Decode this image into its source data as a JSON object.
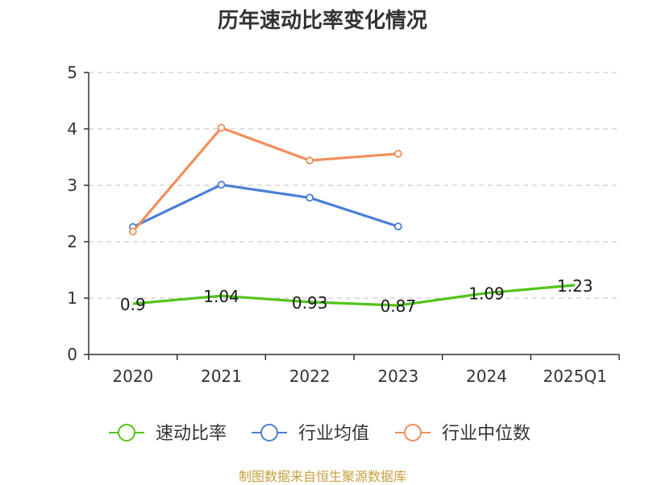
{
  "title": "历年速动比率变化情况",
  "footer": "制图数据来自恒生聚源数据库",
  "chart_data": {
    "type": "line",
    "title": "历年速动比率变化情况",
    "categories": [
      "2020",
      "2021",
      "2022",
      "2023",
      "2024",
      "2025Q1"
    ],
    "ylim": [
      0,
      5
    ],
    "yticks": [
      "0",
      "1",
      "2",
      "3",
      "4",
      "5"
    ],
    "grid": true,
    "legend_position": "bottom",
    "series": [
      {
        "name": "速动比率",
        "color": "#52c41a",
        "values": [
          0.9,
          1.04,
          0.93,
          0.87,
          1.09,
          1.23
        ],
        "labels": [
          "0.9",
          "1.04",
          "0.93",
          "0.87",
          "1.09",
          "1.23"
        ],
        "marker": false
      },
      {
        "name": "行业均值",
        "color": "#4a7fd6",
        "values": [
          2.26,
          3.01,
          2.78,
          2.27,
          null,
          null
        ],
        "marker": true
      },
      {
        "name": "行业中位数",
        "color": "#f28e5a",
        "values": [
          2.18,
          4.02,
          3.44,
          3.56,
          null,
          null
        ],
        "marker": true
      }
    ]
  }
}
